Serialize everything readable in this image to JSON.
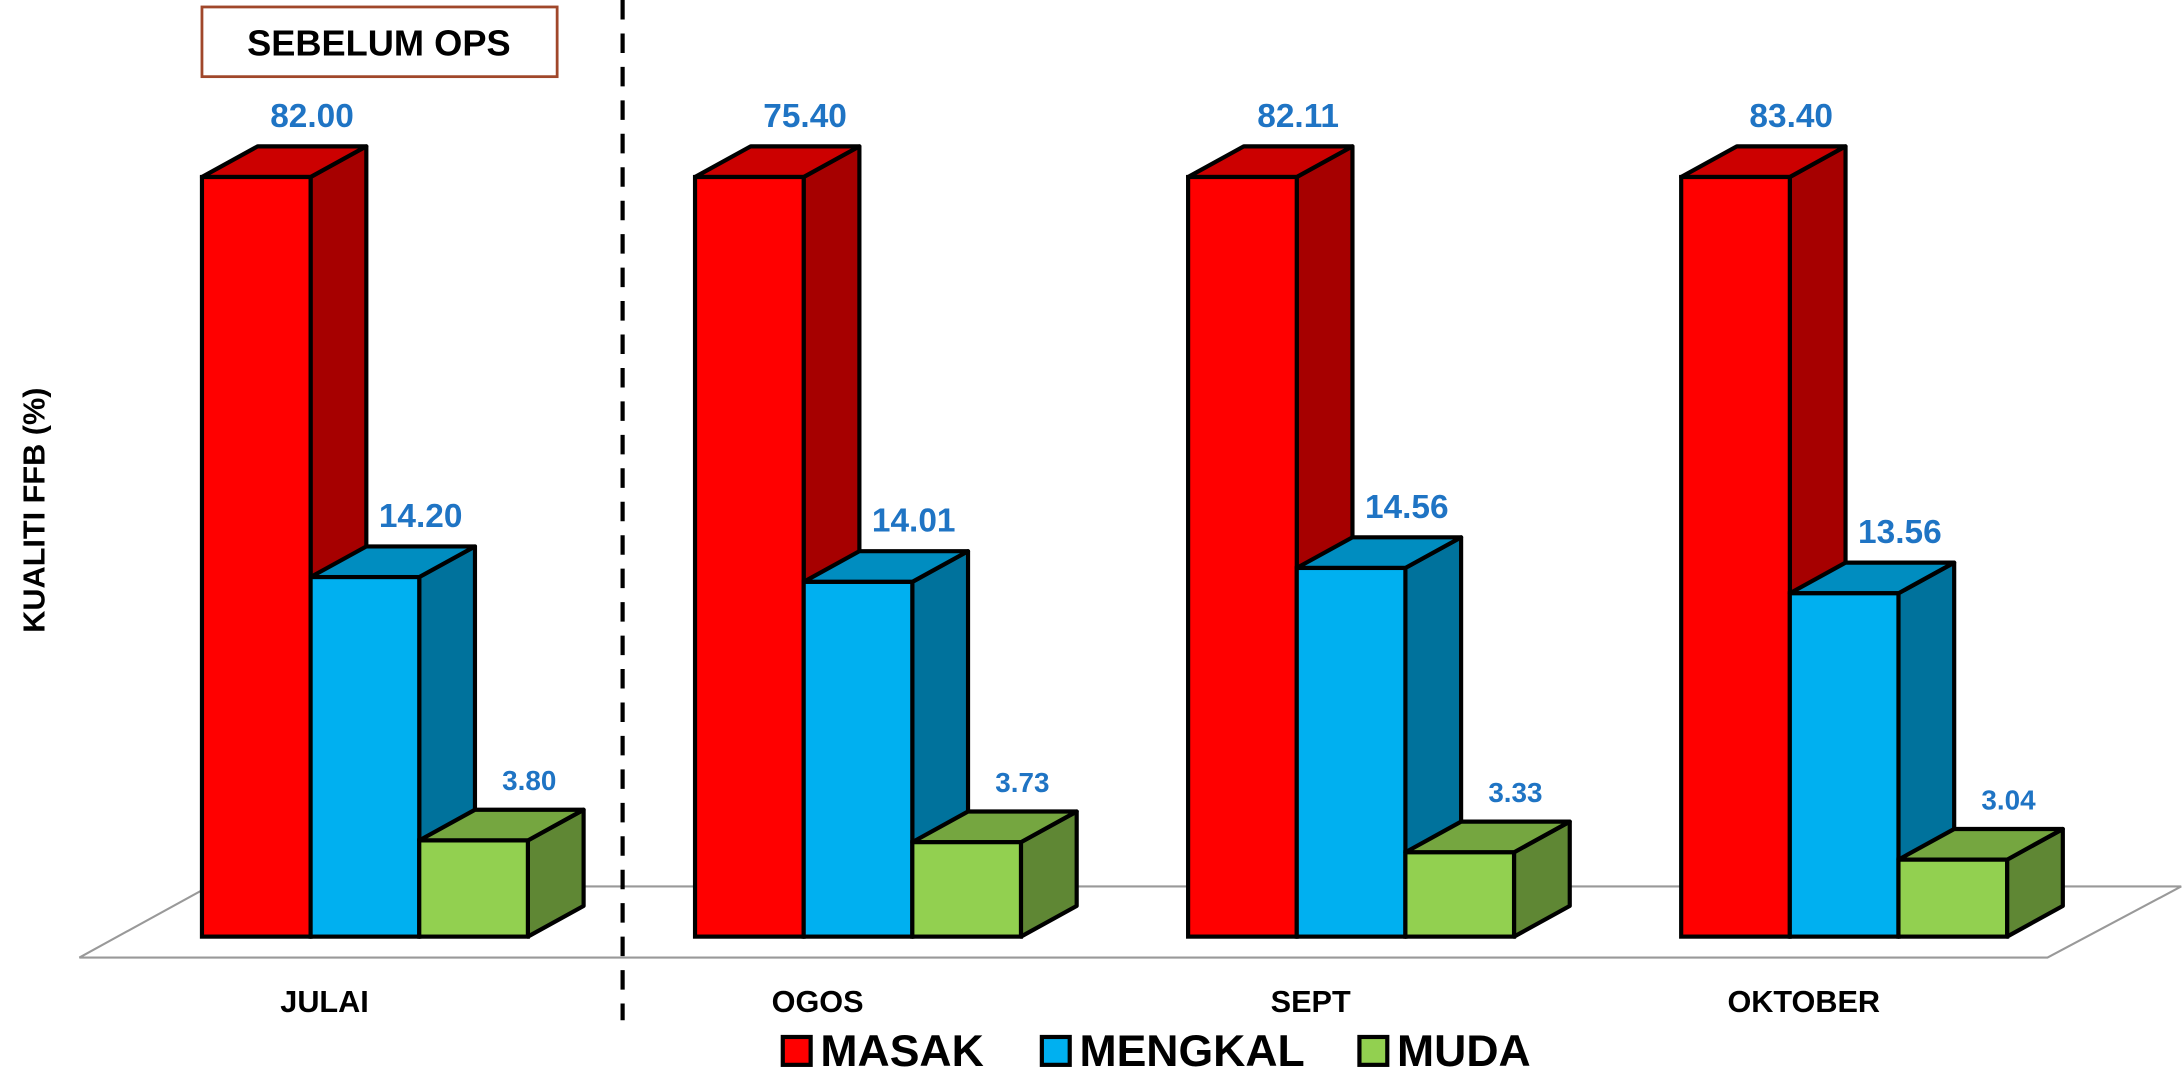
{
  "chart_data": {
    "type": "bar3d",
    "y_label": "KUALITI FFB (%)",
    "annotation": "SEBELUM OPS",
    "categories": [
      "JULAI",
      "OGOS",
      "SEPT",
      "OKTOBER"
    ],
    "series": [
      {
        "name": "MASAK",
        "color": "#ff0000",
        "values": [
          82,
          75.4,
          82.11,
          83.4
        ],
        "value_labels": [
          "82.00",
          "75.40",
          "82.11",
          "83.40"
        ]
      },
      {
        "name": "MENGKAL",
        "color": "#00b0f0",
        "values": [
          14.2,
          14.01,
          14.56,
          13.56
        ],
        "value_labels": [
          "14.20",
          "14.01",
          "14.56",
          "13.56"
        ]
      },
      {
        "name": "MUDA",
        "color": "#92d050",
        "values": [
          3.8,
          3.73,
          3.33,
          3.04
        ],
        "value_labels": [
          "3.80",
          "3.73",
          "3.33",
          "3.04"
        ]
      }
    ],
    "ylim": [
      0,
      30
    ]
  }
}
